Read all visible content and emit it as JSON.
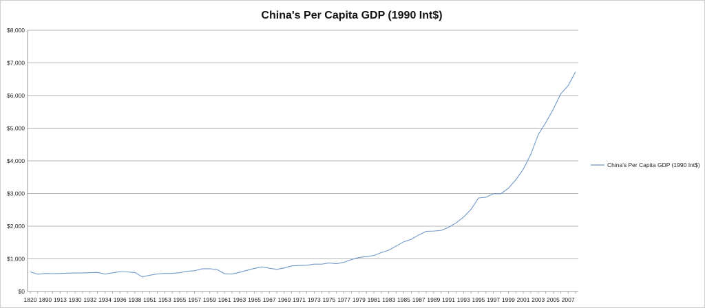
{
  "chart_data": {
    "type": "line",
    "title": "China's Per Capita GDP (1990 Int$)",
    "xlabel": "",
    "ylabel": "",
    "ylim": [
      0,
      8000
    ],
    "yticks": [
      0,
      1000,
      2000,
      3000,
      4000,
      5000,
      6000,
      7000,
      8000
    ],
    "ytick_labels": [
      "$0",
      "$1,000",
      "$2,000",
      "$3,000",
      "$4,000",
      "$5,000",
      "$6,000",
      "$7,000",
      "$8,000"
    ],
    "grid": "horizontal",
    "legend_position": "right",
    "color": "#6f97c9",
    "series": [
      {
        "name": "China's Per Capita GDP (1990 Int$)",
        "x": [
          "1820",
          "1870",
          "1890",
          "1900",
          "1913",
          "1929",
          "1930",
          "1931",
          "1932",
          "1933",
          "1934",
          "1935",
          "1936",
          "1937",
          "1938",
          "1950",
          "1951",
          "1952",
          "1953",
          "1954",
          "1955",
          "1956",
          "1957",
          "1958",
          "1959",
          "1960",
          "1961",
          "1962",
          "1963",
          "1964",
          "1965",
          "1966",
          "1967",
          "1968",
          "1969",
          "1970",
          "1971",
          "1972",
          "1973",
          "1974",
          "1975",
          "1976",
          "1977",
          "1978",
          "1979",
          "1980",
          "1981",
          "1982",
          "1983",
          "1984",
          "1985",
          "1986",
          "1987",
          "1988",
          "1989",
          "1990",
          "1991",
          "1992",
          "1993",
          "1994",
          "1995",
          "1996",
          "1997",
          "1998",
          "1999",
          "2000",
          "2001",
          "2002",
          "2003",
          "2004",
          "2005",
          "2006",
          "2007",
          "2008"
        ],
        "values": [
          600,
          530,
          552,
          545,
          552,
          562,
          568,
          567,
          578,
          582,
          534,
          573,
          608,
          600,
          580,
          448,
          498,
          537,
          554,
          555,
          575,
          619,
          637,
          693,
          697,
          673,
          544,
          536,
          585,
          649,
          706,
          753,
          712,
          678,
          722,
          783,
          799,
          802,
          839,
          837,
          874,
          852,
          895,
          978,
          1040,
          1067,
          1103,
          1192,
          1265,
          1396,
          1522,
          1598,
          1730,
          1842,
          1850,
          1871,
          1967,
          2098,
          2277,
          2515,
          2863,
          2885,
          2994,
          2993,
          3162,
          3421,
          3747,
          4197,
          4803,
          5169,
          5575,
          6048,
          6303,
          6725
        ]
      }
    ],
    "x_tick_labels": [
      "1820",
      "1890",
      "1913",
      "1930",
      "1932",
      "1934",
      "1936",
      "1938",
      "1951",
      "1953",
      "1955",
      "1957",
      "1959",
      "1961",
      "1963",
      "1965",
      "1967",
      "1969",
      "1971",
      "1973",
      "1975",
      "1977",
      "1979",
      "1981",
      "1983",
      "1985",
      "1987",
      "1989",
      "1991",
      "1993",
      "1995",
      "1997",
      "1999",
      "2001",
      "2003",
      "2005",
      "2007"
    ]
  }
}
